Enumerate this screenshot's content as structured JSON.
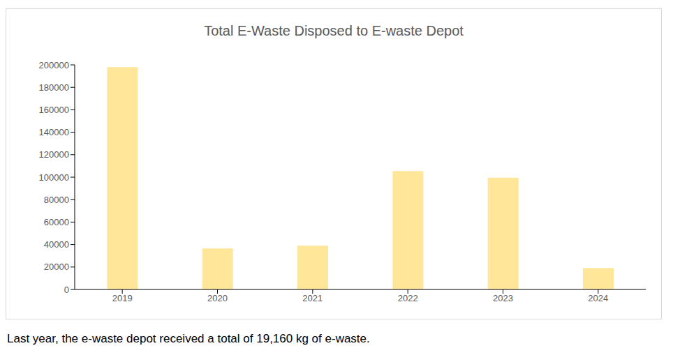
{
  "chart_data": {
    "type": "bar",
    "title": "Total E-Waste Disposed to E-waste Depot",
    "categories": [
      "2019",
      "2020",
      "2021",
      "2022",
      "2023",
      "2024"
    ],
    "values": [
      198000,
      36500,
      39000,
      105500,
      99500,
      19160
    ],
    "color": "#ffe699",
    "ylim": [
      0,
      200000
    ],
    "yticks": [
      0,
      20000,
      40000,
      60000,
      80000,
      100000,
      120000,
      140000,
      160000,
      180000,
      200000
    ],
    "grid": false,
    "annotations": [
      "Last year, the e-waste depot received a total of 19,160 kg of e-waste."
    ]
  }
}
